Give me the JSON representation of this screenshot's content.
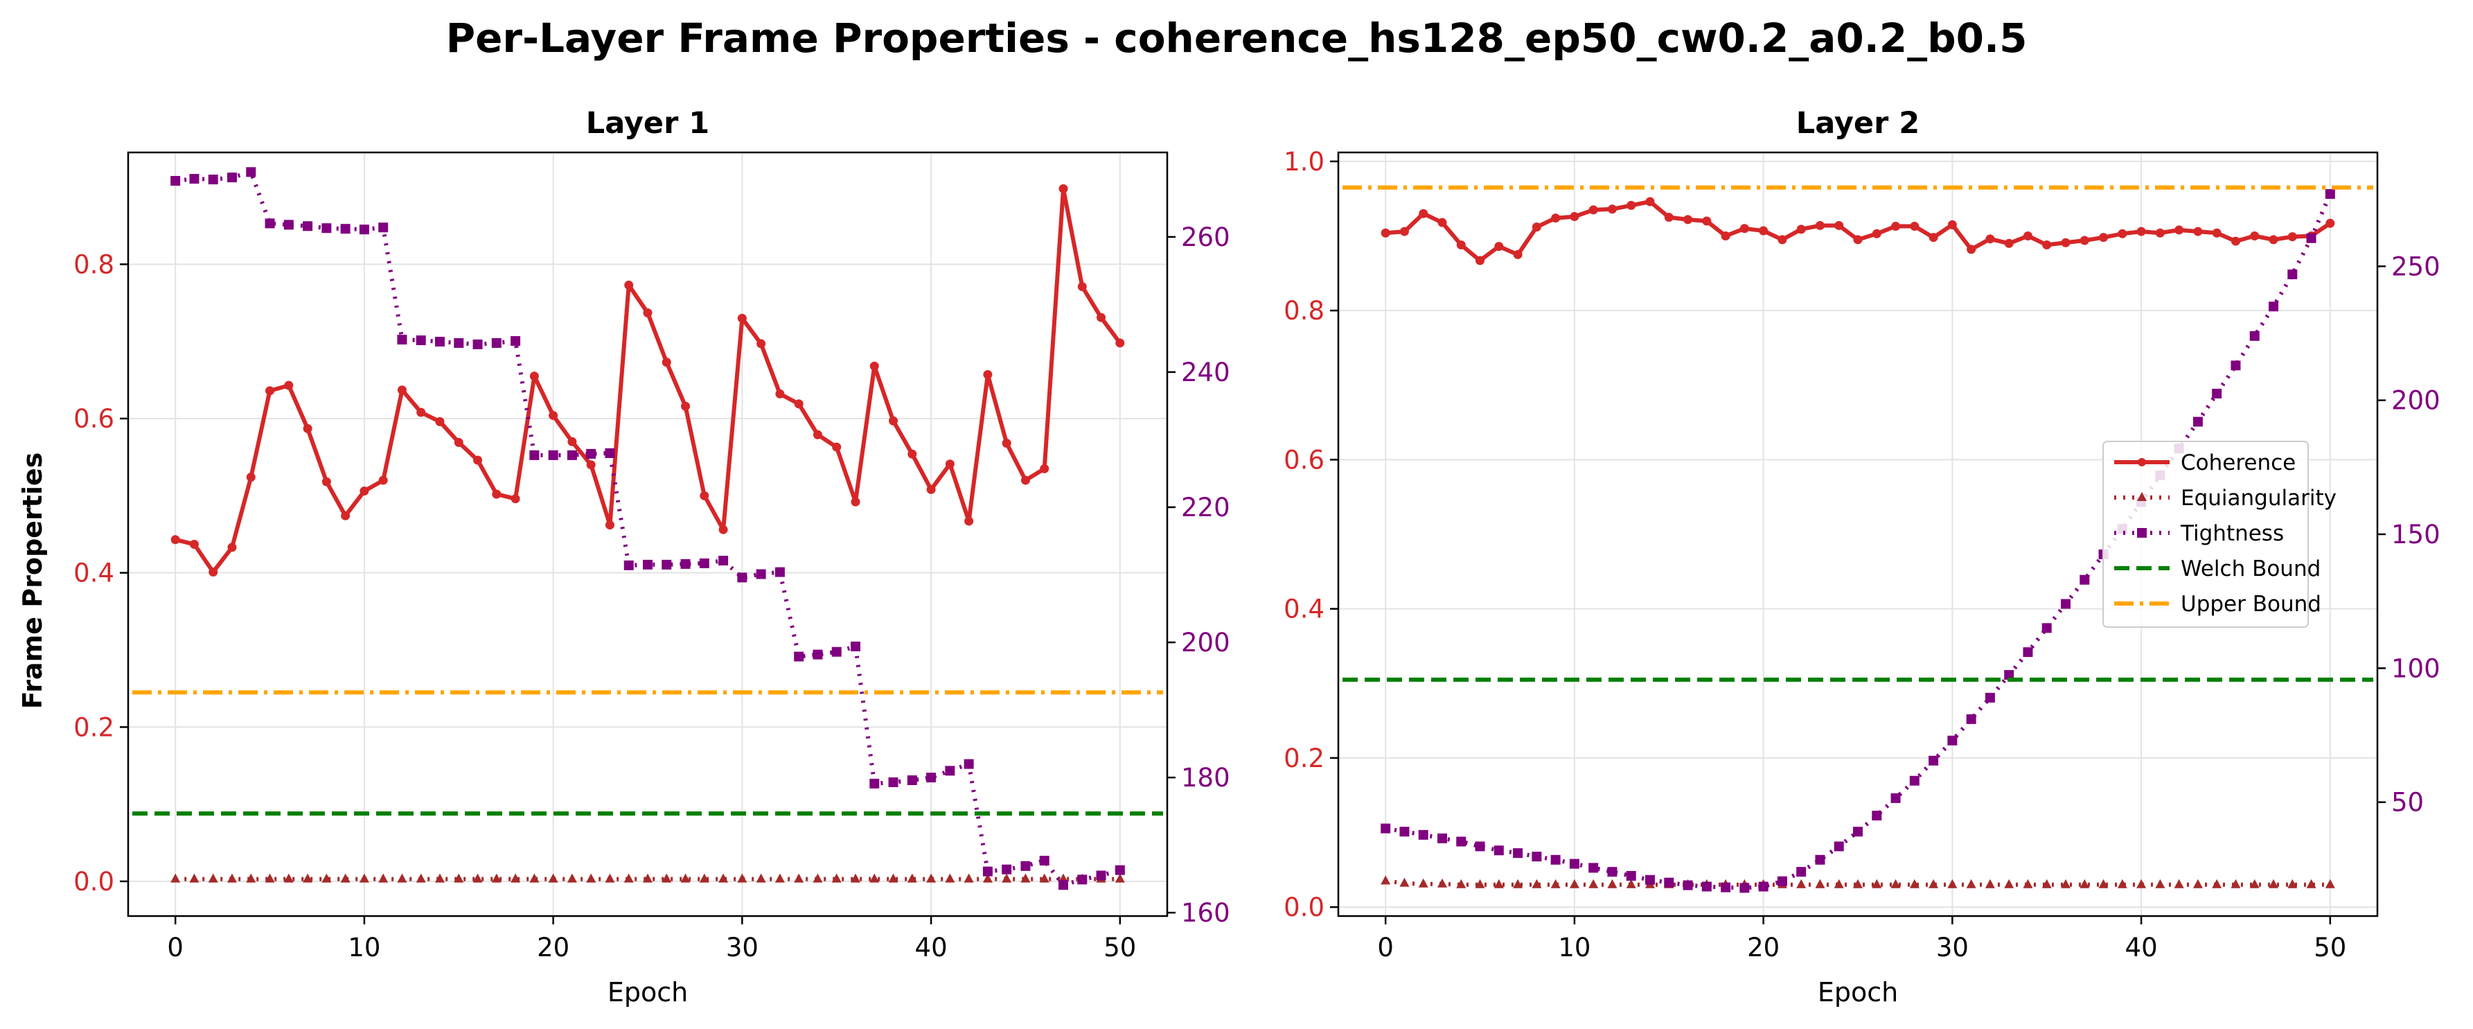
{
  "title": "Per-Layer Frame Properties - coherence_hs128_ep50_cw0.2_a0.2_b0.5",
  "colors": {
    "coherence": "#d62728",
    "equiangularity": "#a52a2a",
    "tightness": "#800080",
    "welch": "#008000",
    "upper": "#ffa500",
    "left_tick": "#d62728",
    "right_tick": "#800080"
  },
  "legend": {
    "location": "center-right of Layer 2",
    "items": [
      "Coherence",
      "Equiangularity",
      "Tightness",
      "Welch Bound",
      "Upper Bound"
    ]
  },
  "chart_data": [
    {
      "type": "line",
      "title": "Layer 1",
      "xlabel": "Epoch",
      "ylabel": "Frame Properties",
      "xlim": [
        -2.5,
        52.5
      ],
      "xticks": [
        0,
        10,
        20,
        30,
        40,
        50
      ],
      "ylim_left": [
        -0.045,
        0.945
      ],
      "yticks_left": [
        "0.0",
        "0.2",
        "0.4",
        "0.6",
        "0.8"
      ],
      "ylim_right": [
        159.5,
        272.5
      ],
      "yticks_right": [
        "160",
        "180",
        "200",
        "220",
        "240",
        "260"
      ],
      "grid": true,
      "x": [
        0,
        1,
        2,
        3,
        4,
        5,
        6,
        7,
        8,
        9,
        10,
        11,
        12,
        13,
        14,
        15,
        16,
        17,
        18,
        19,
        20,
        21,
        22,
        23,
        24,
        25,
        26,
        27,
        28,
        29,
        30,
        31,
        32,
        33,
        34,
        35,
        36,
        37,
        38,
        39,
        40,
        41,
        42,
        43,
        44,
        45,
        46,
        47,
        48,
        49,
        50
      ],
      "series": [
        {
          "name": "Coherence",
          "axis": "left",
          "values": [
            0.443,
            0.437,
            0.401,
            0.433,
            0.524,
            0.636,
            0.643,
            0.587,
            0.518,
            0.474,
            0.506,
            0.52,
            0.637,
            0.608,
            0.596,
            0.569,
            0.546,
            0.502,
            0.496,
            0.655,
            0.604,
            0.57,
            0.54,
            0.462,
            0.773,
            0.737,
            0.673,
            0.616,
            0.5,
            0.456,
            0.73,
            0.697,
            0.632,
            0.619,
            0.579,
            0.563,
            0.492,
            0.668,
            0.597,
            0.554,
            0.508,
            0.541,
            0.467,
            0.657,
            0.568,
            0.52,
            0.535,
            0.898,
            0.771,
            0.731,
            0.698
          ]
        },
        {
          "name": "Equiangularity",
          "axis": "left",
          "values": [
            0.003,
            0.003,
            0.003,
            0.003,
            0.003,
            0.003,
            0.003,
            0.003,
            0.003,
            0.003,
            0.003,
            0.003,
            0.003,
            0.003,
            0.003,
            0.003,
            0.003,
            0.003,
            0.003,
            0.003,
            0.003,
            0.003,
            0.003,
            0.003,
            0.003,
            0.003,
            0.003,
            0.003,
            0.003,
            0.003,
            0.003,
            0.003,
            0.003,
            0.003,
            0.003,
            0.003,
            0.003,
            0.003,
            0.003,
            0.003,
            0.003,
            0.003,
            0.003,
            0.003,
            0.003,
            0.003,
            0.003,
            0.003,
            0.003,
            0.003,
            0.003
          ]
        },
        {
          "name": "Tightness",
          "axis": "right",
          "values": [
            268.3,
            268.6,
            268.5,
            268.8,
            269.6,
            262.0,
            261.8,
            261.6,
            261.3,
            261.2,
            261.1,
            261.4,
            244.8,
            244.7,
            244.5,
            244.3,
            244.1,
            244.3,
            244.6,
            227.7,
            227.7,
            227.7,
            227.9,
            228.0,
            211.4,
            211.5,
            211.5,
            211.6,
            211.7,
            212.1,
            209.6,
            210.1,
            210.4,
            197.9,
            198.2,
            198.6,
            199.4,
            179.1,
            179.3,
            179.6,
            180.0,
            181.0,
            182.0,
            166.1,
            166.4,
            166.9,
            167.7,
            164.1,
            164.9,
            165.5,
            166.3
          ]
        },
        {
          "name": "Welch Bound",
          "axis": "left",
          "constant": 0.088
        },
        {
          "name": "Upper Bound",
          "axis": "left",
          "constant": 0.245
        }
      ]
    },
    {
      "type": "line",
      "title": "Layer 2",
      "xlabel": "Epoch",
      "ylabel": "",
      "xlim": [
        -2.5,
        52.5
      ],
      "xticks": [
        0,
        10,
        20,
        30,
        40,
        50
      ],
      "ylim_left": [
        -0.012,
        1.012
      ],
      "yticks_left": [
        "0.0",
        "0.2",
        "0.4",
        "0.6",
        "0.8",
        "1.0"
      ],
      "ylim_right": [
        7.5,
        292.5
      ],
      "yticks_right": [
        "50",
        "100",
        "150",
        "200",
        "250"
      ],
      "grid": true,
      "x": [
        0,
        1,
        2,
        3,
        4,
        5,
        6,
        7,
        8,
        9,
        10,
        11,
        12,
        13,
        14,
        15,
        16,
        17,
        18,
        19,
        20,
        21,
        22,
        23,
        24,
        25,
        26,
        27,
        28,
        29,
        30,
        31,
        32,
        33,
        34,
        35,
        36,
        37,
        38,
        39,
        40,
        41,
        42,
        43,
        44,
        45,
        46,
        47,
        48,
        49,
        50
      ],
      "series": [
        {
          "name": "Coherence",
          "axis": "left",
          "values": [
            0.904,
            0.906,
            0.93,
            0.918,
            0.888,
            0.867,
            0.886,
            0.875,
            0.912,
            0.924,
            0.926,
            0.935,
            0.936,
            0.941,
            0.946,
            0.925,
            0.922,
            0.92,
            0.9,
            0.91,
            0.907,
            0.895,
            0.909,
            0.914,
            0.914,
            0.895,
            0.903,
            0.913,
            0.913,
            0.898,
            0.915,
            0.882,
            0.896,
            0.89,
            0.9,
            0.888,
            0.891,
            0.894,
            0.898,
            0.903,
            0.906,
            0.904,
            0.908,
            0.906,
            0.904,
            0.893,
            0.9,
            0.895,
            0.899,
            0.9,
            0.917
          ]
        },
        {
          "name": "Equiangularity",
          "axis": "left",
          "values": [
            0.035,
            0.032,
            0.031,
            0.031,
            0.03,
            0.03,
            0.03,
            0.03,
            0.03,
            0.03,
            0.03,
            0.03,
            0.03,
            0.03,
            0.03,
            0.03,
            0.03,
            0.03,
            0.03,
            0.03,
            0.03,
            0.03,
            0.03,
            0.03,
            0.03,
            0.03,
            0.03,
            0.03,
            0.03,
            0.03,
            0.03,
            0.03,
            0.03,
            0.03,
            0.03,
            0.03,
            0.03,
            0.03,
            0.03,
            0.03,
            0.03,
            0.03,
            0.03,
            0.03,
            0.03,
            0.03,
            0.03,
            0.03,
            0.03,
            0.03,
            0.03
          ]
        },
        {
          "name": "Tightness",
          "axis": "right",
          "values": [
            40.2,
            39.0,
            37.8,
            36.5,
            35.3,
            33.5,
            32.0,
            31.0,
            29.7,
            28.5,
            27.0,
            25.5,
            24.0,
            22.5,
            21.0,
            20.0,
            19.0,
            18.5,
            18.2,
            18.0,
            18.5,
            20.5,
            24.0,
            28.5,
            33.5,
            39.0,
            45.0,
            51.5,
            58.0,
            65.5,
            73.0,
            81.0,
            89.0,
            97.5,
            106.0,
            115.0,
            124.0,
            133.0,
            142.5,
            152.0,
            162.0,
            172.0,
            182.0,
            192.0,
            202.5,
            213.0,
            224.0,
            235.0,
            247.0,
            260.5,
            277.0
          ]
        },
        {
          "name": "Welch Bound",
          "axis": "left",
          "constant": 0.305
        },
        {
          "name": "Upper Bound",
          "axis": "left",
          "constant": 0.965
        }
      ]
    }
  ]
}
